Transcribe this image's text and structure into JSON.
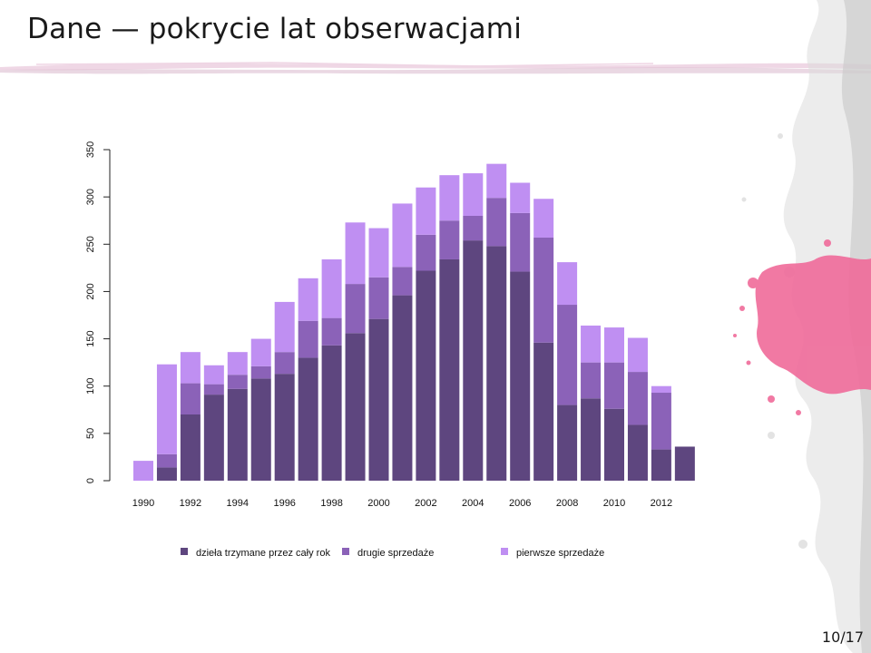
{
  "slide": {
    "title": "Dane — pokrycie lat obserwacjami",
    "page_number": "10/17"
  },
  "colors": {
    "held": "#5e467f",
    "second": "#8b62b8",
    "first": "#bf8ff2",
    "splash": "#f06b9a"
  },
  "chart_data": {
    "type": "bar",
    "stacked": true,
    "title": "",
    "xlabel": "",
    "ylabel": "",
    "ylim": [
      0,
      350
    ],
    "yticks": [
      0,
      50,
      100,
      150,
      200,
      250,
      300,
      350
    ],
    "categories": [
      1990,
      1991,
      1992,
      1993,
      1994,
      1995,
      1996,
      1997,
      1998,
      1999,
      2000,
      2001,
      2002,
      2003,
      2004,
      2005,
      2006,
      2007,
      2008,
      2009,
      2010,
      2011,
      2012,
      2013
    ],
    "xtick_labels": [
      "1990",
      "1992",
      "1994",
      "1996",
      "1998",
      "2000",
      "2002",
      "2004",
      "2006",
      "2008",
      "2010",
      "2012"
    ],
    "series": [
      {
        "name": "dzieła trzymane przez cały rok",
        "color_key": "held",
        "values": [
          0,
          14,
          70,
          91,
          97,
          108,
          113,
          130,
          143,
          156,
          171,
          196,
          222,
          234,
          254,
          248,
          221,
          146,
          80,
          87,
          76,
          59,
          33,
          36
        ]
      },
      {
        "name": "drugie sprzedaże",
        "color_key": "second",
        "values": [
          0,
          14,
          33,
          11,
          15,
          13,
          23,
          39,
          29,
          52,
          44,
          30,
          38,
          41,
          26,
          51,
          62,
          111,
          106,
          38,
          49,
          56,
          60,
          0
        ]
      },
      {
        "name": "pierwsze sprzedaże",
        "color_key": "first",
        "values": [
          21,
          95,
          33,
          20,
          24,
          29,
          53,
          45,
          62,
          65,
          52,
          67,
          50,
          48,
          45,
          36,
          32,
          41,
          45,
          39,
          37,
          36,
          7,
          0
        ]
      }
    ],
    "legend_position": "bottom"
  }
}
